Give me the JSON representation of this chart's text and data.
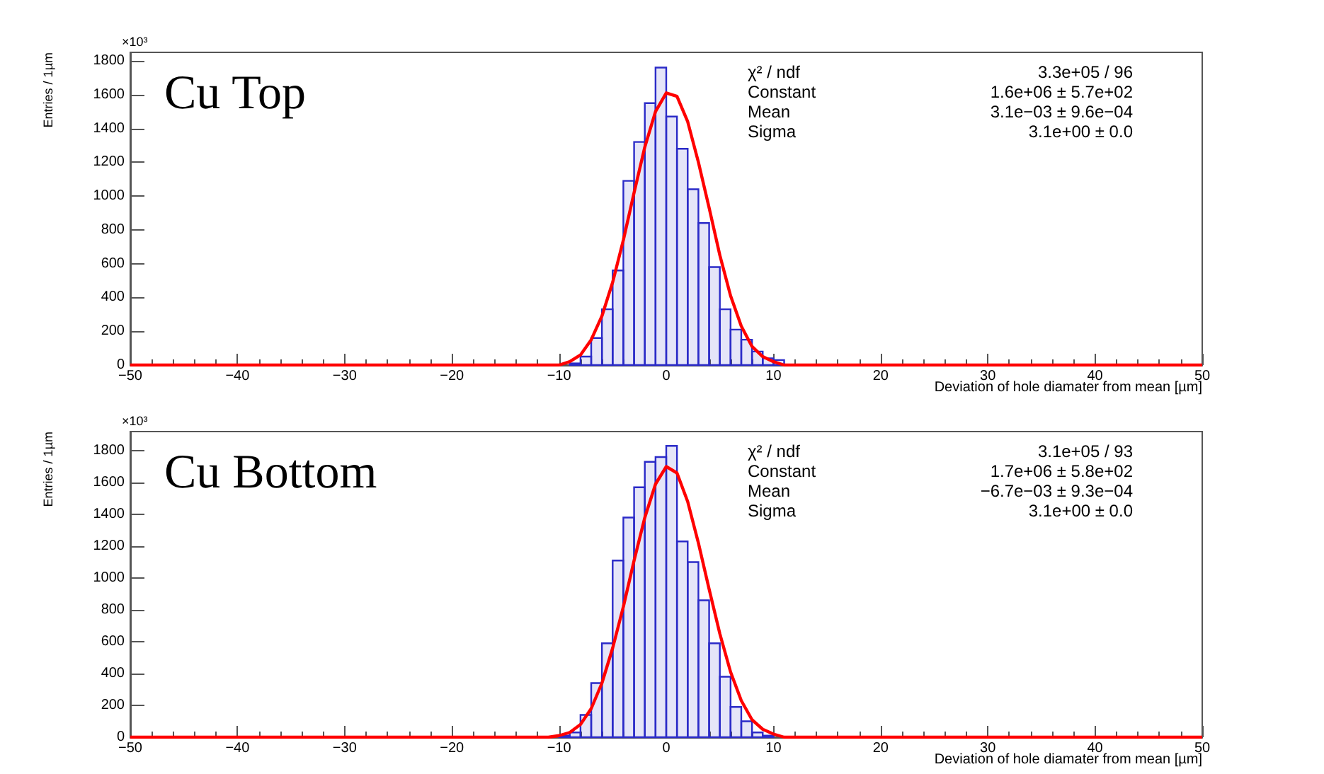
{
  "chart_data": [
    {
      "type": "histogram",
      "xlabel": "Deviation of hole diamater from mean [µm]",
      "ylabel": "Entries / 1µm",
      "annotations": [
        "×10³",
        "Cu Top",
        "χ² / ndf",
        "3.3e+05 / 96",
        "Constant",
        "1.6e+06 ± 5.7e+02",
        "Mean",
        "3.1e−03 ± 9.6e−04",
        "Sigma",
        "3.1e+00 ± 0.0"
      ],
      "bins": [
        -9,
        -8,
        -7,
        -6,
        -5,
        -4,
        -3,
        -2,
        -1,
        0,
        1,
        2,
        3,
        4,
        5,
        6,
        7,
        8,
        9,
        10,
        11
      ],
      "series": [
        {
          "type": "histogram",
          "color": "#2b2bc8",
          "values": [
            10,
            50,
            160,
            330,
            560,
            1090,
            1320,
            1550,
            1760,
            1470,
            1280,
            1040,
            840,
            580,
            330,
            210,
            150,
            80,
            40,
            30
          ]
        },
        {
          "type": "line",
          "color": "#ff0000",
          "x": [
            -50,
            -11,
            -10,
            -9,
            -8,
            -7,
            -6,
            -5,
            -4,
            -3,
            -2,
            -1,
            0,
            1,
            2,
            3,
            4,
            5,
            6,
            7,
            8,
            9,
            10,
            11,
            50
          ],
          "values": [
            0,
            0,
            0,
            20,
            60,
            150,
            290,
            490,
            740,
            1020,
            1290,
            1500,
            1610,
            1590,
            1440,
            1200,
            930,
            650,
            410,
            230,
            110,
            50,
            20,
            0,
            0
          ]
        }
      ],
      "xlim": [
        -50,
        50
      ],
      "xticks": [
        -50,
        -40,
        -30,
        -20,
        -10,
        0,
        10,
        20,
        30,
        40,
        50
      ],
      "ylim": [
        0,
        1850
      ],
      "yticks": [
        0,
        200,
        400,
        600,
        800,
        1000,
        1200,
        1400,
        1600,
        1800
      ],
      "grid": false,
      "marker": "none"
    },
    {
      "type": "histogram",
      "xlabel": "Deviation of hole diamater from mean [µm]",
      "ylabel": "Entries / 1µm",
      "annotations": [
        "×10³",
        "Cu Bottom",
        "χ² / ndf",
        "3.1e+05 / 93",
        "Constant",
        "1.7e+06 ± 5.8e+02",
        "Mean",
        "−6.7e−03 ± 9.3e−04",
        "Sigma",
        "3.1e+00 ± 0.0"
      ],
      "bins": [
        -10,
        -9,
        -8,
        -7,
        -6,
        -5,
        -4,
        -3,
        -2,
        -1,
        0,
        1,
        2,
        3,
        4,
        5,
        6,
        7,
        8,
        9,
        10
      ],
      "series": [
        {
          "type": "histogram",
          "color": "#2b2bc8",
          "values": [
            10,
            30,
            140,
            340,
            590,
            1110,
            1380,
            1570,
            1730,
            1760,
            1830,
            1230,
            1100,
            860,
            590,
            380,
            190,
            100,
            30,
            10
          ]
        },
        {
          "type": "line",
          "color": "#ff0000",
          "x": [
            -50,
            -11,
            -10,
            -9,
            -8,
            -7,
            -6,
            -5,
            -4,
            -3,
            -2,
            -1,
            0,
            1,
            2,
            3,
            4,
            5,
            6,
            7,
            8,
            9,
            10,
            11,
            50
          ],
          "values": [
            0,
            0,
            10,
            30,
            80,
            180,
            340,
            560,
            820,
            1110,
            1380,
            1590,
            1700,
            1660,
            1480,
            1220,
            930,
            650,
            410,
            230,
            110,
            50,
            20,
            0,
            0
          ]
        }
      ],
      "xlim": [
        -50,
        50
      ],
      "xticks": [
        -50,
        -40,
        -30,
        -20,
        -10,
        0,
        10,
        20,
        30,
        40,
        50
      ],
      "ylim": [
        0,
        1920
      ],
      "yticks": [
        0,
        200,
        400,
        600,
        800,
        1000,
        1200,
        1400,
        1600,
        1800
      ],
      "grid": false,
      "marker": "none"
    }
  ]
}
